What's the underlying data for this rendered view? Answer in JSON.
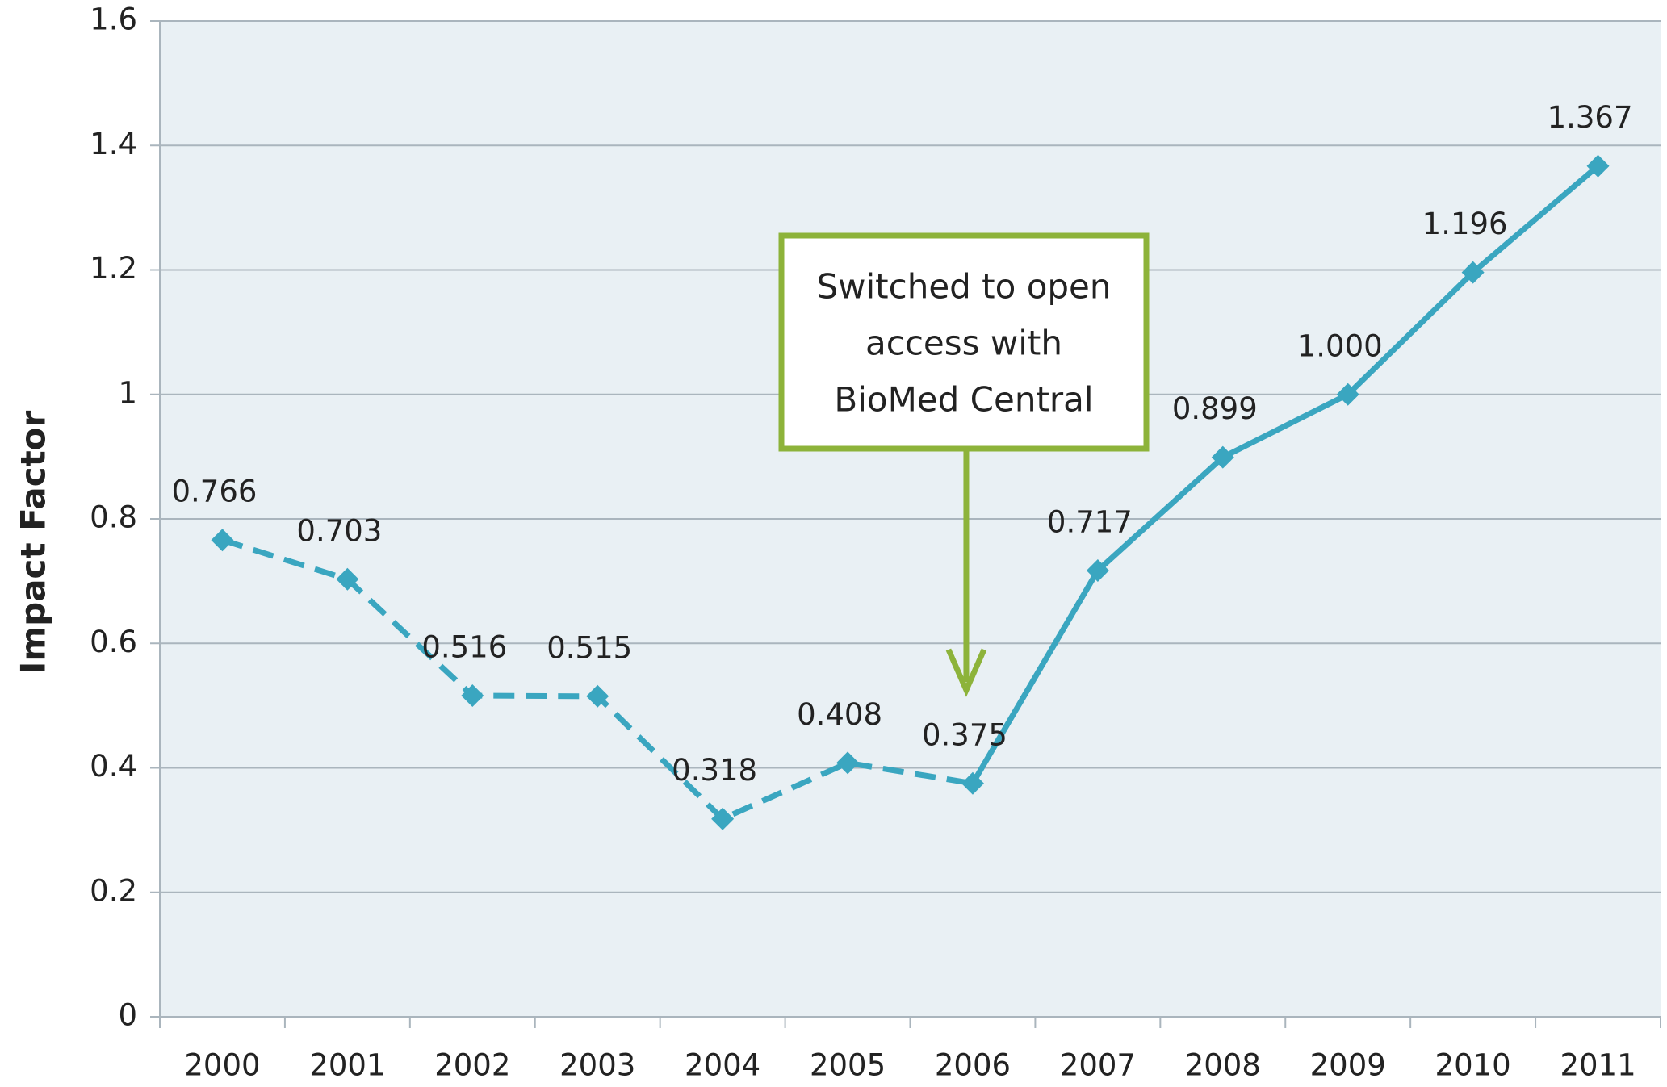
{
  "chart_data": {
    "type": "line",
    "y_label": "Impact Factor",
    "categories": [
      "2000",
      "2001",
      "2002",
      "2003",
      "2004",
      "2005",
      "2006",
      "2007",
      "2008",
      "2009",
      "2010",
      "2011"
    ],
    "values": [
      0.766,
      0.703,
      0.516,
      0.515,
      0.318,
      0.408,
      0.375,
      0.717,
      0.899,
      1,
      1.196,
      1.367
    ],
    "value_labels": [
      "0.766",
      "0.703",
      "0.516",
      "0.515",
      "0.318",
      "0.408",
      "0.375",
      "0.717",
      "0.899",
      "1.000",
      "1.196",
      "1.367"
    ],
    "color": "#3aa6c0",
    "dash_until": "2006",
    "ylim": [
      0,
      1.6
    ],
    "yticks": [
      0,
      0.2,
      0.4,
      0.6,
      0.8,
      1,
      1.2,
      1.4,
      1.6
    ],
    "grid": true,
    "annotation": {
      "lines": [
        "Switched to open",
        "access with",
        "BioMed Central"
      ],
      "category": "2006",
      "color": "#8db33a"
    }
  }
}
